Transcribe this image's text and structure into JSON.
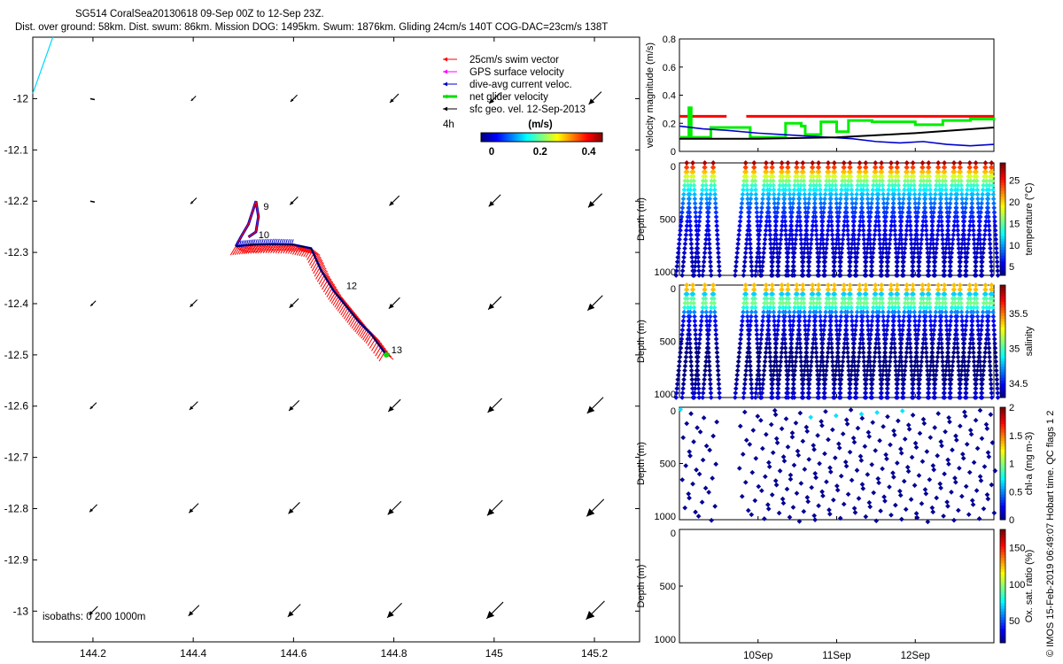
{
  "header": {
    "title": "SG514 CoralSea20130618 09-Sep 00Z to 12-Sep 23Z.",
    "subtitle": "Dist. over ground: 58km. Dist. swum: 86km. Mission DOG: 1495km. Swum: 1876km. Gliding 24cm/s 140T COG-DAC=23cm/s 138T"
  },
  "credit": "© IMOS 15-Feb-2019 06:49:07 Hobart time. QC flags 1  2",
  "colors": {
    "swim": "#ff0000",
    "gps": "#ff00ff",
    "dac": "#0000cc",
    "net": "#00dd00",
    "geo": "#000000",
    "cyan": "#00d8ff"
  },
  "chart_data": [
    {
      "type": "scatter",
      "name": "map",
      "x_ticks": [
        "144.2",
        "144.4",
        "144.6",
        "144.8",
        "145",
        "145.2"
      ],
      "y_ticks": [
        "-12",
        "-12.1",
        "-12.2",
        "-12.3",
        "-12.4",
        "-12.5",
        "-12.6",
        "-12.7",
        "-12.8",
        "-12.9",
        "-13"
      ],
      "xlim": [
        144.08,
        145.29
      ],
      "ylim": [
        -13.06,
        -11.88
      ],
      "legend": [
        {
          "label": "25cm/s swim vector",
          "color": "#ff0000"
        },
        {
          "label": "GPS surface velocity",
          "color": "#ff00ff"
        },
        {
          "label": "dive-avg current veloc.",
          "color": "#0000cc"
        },
        {
          "label": "net glider velocity",
          "color": "#00dd00"
        },
        {
          "label": "sfc geo. vel. 12-Sep-2013",
          "color": "#000000"
        }
      ],
      "legend_extra": "4h",
      "colorbar": {
        "unit": "(m/s)",
        "ticks": [
          "0",
          "0.2",
          "0.4"
        ],
        "range": [
          0,
          0.5
        ]
      },
      "isobaths_label": "isobaths: 0   200  1000m",
      "track": [
        [
          144.485,
          -12.288
        ],
        [
          144.52,
          -12.285
        ],
        [
          144.56,
          -12.284
        ],
        [
          144.6,
          -12.285
        ],
        [
          144.635,
          -12.292
        ],
        [
          144.655,
          -12.335
        ],
        [
          144.68,
          -12.375
        ],
        [
          144.705,
          -12.405
        ],
        [
          144.73,
          -12.435
        ],
        [
          144.755,
          -12.46
        ],
        [
          144.785,
          -12.5
        ]
      ],
      "loop": [
        [
          144.485,
          -12.288
        ],
        [
          144.495,
          -12.27
        ],
        [
          144.51,
          -12.245
        ],
        [
          144.52,
          -12.215
        ],
        [
          144.525,
          -12.2
        ],
        [
          144.53,
          -12.23
        ],
        [
          144.525,
          -12.26
        ],
        [
          144.51,
          -12.27
        ]
      ],
      "day_labels": [
        {
          "text": "9",
          "lon": 144.54,
          "lat": -12.21
        },
        {
          "text": "10",
          "lon": 144.53,
          "lat": -12.265
        },
        {
          "text": "12",
          "lon": 144.705,
          "lat": -12.365
        },
        {
          "text": "13",
          "lon": 144.795,
          "lat": -12.49
        }
      ],
      "geo_lons": [
        144.2,
        144.4,
        144.6,
        144.8,
        145.0,
        145.2
      ],
      "geo_lats": [
        -12.0,
        -12.2,
        -12.4,
        -12.6,
        -12.8,
        -13.0
      ]
    },
    {
      "type": "line",
      "name": "velocity",
      "ylabel": "velocity magnitude (m/s)",
      "y_ticks": [
        "0",
        "0.2",
        "0.4",
        "0.6",
        "0.8"
      ],
      "ylim": [
        0,
        0.8
      ],
      "xlim": [
        9.0,
        13.0
      ],
      "series": [
        {
          "color": "#ff0000",
          "segments": [
            [
              [
                9.0,
                0.25
              ],
              [
                9.6,
                0.25
              ]
            ],
            [
              [
                9.85,
                0.25
              ],
              [
                13.0,
                0.25
              ]
            ]
          ]
        },
        {
          "color": "#00ee00",
          "steps": [
            [
              9.0,
              0.1
            ],
            [
              9.12,
              0.31
            ],
            [
              9.15,
              0.1
            ],
            [
              9.4,
              0.1
            ],
            [
              9.4,
              0.17
            ],
            [
              9.8,
              0.17
            ],
            [
              9.9,
              0.1
            ],
            [
              10.1,
              0.1
            ],
            [
              10.35,
              0.2
            ],
            [
              10.55,
              0.18
            ],
            [
              10.6,
              0.12
            ],
            [
              10.8,
              0.21
            ],
            [
              11.0,
              0.14
            ],
            [
              11.15,
              0.22
            ],
            [
              11.45,
              0.21
            ],
            [
              11.8,
              0.21
            ],
            [
              12.0,
              0.19
            ],
            [
              12.35,
              0.22
            ],
            [
              12.7,
              0.23
            ],
            [
              13.0,
              0.22
            ]
          ]
        },
        {
          "color": "#0000cc",
          "points": [
            [
              9.0,
              0.18
            ],
            [
              9.3,
              0.16
            ],
            [
              9.6,
              0.15
            ],
            [
              10.0,
              0.13
            ],
            [
              10.3,
              0.12
            ],
            [
              10.6,
              0.11
            ],
            [
              10.9,
              0.1
            ],
            [
              11.2,
              0.09
            ],
            [
              11.5,
              0.07
            ],
            [
              11.8,
              0.06
            ],
            [
              12.1,
              0.07
            ],
            [
              12.4,
              0.05
            ],
            [
              12.7,
              0.04
            ],
            [
              13.0,
              0.05
            ]
          ]
        },
        {
          "color": "#000000",
          "points": [
            [
              9.0,
              0.09
            ],
            [
              10.0,
              0.09
            ],
            [
              11.0,
              0.1
            ],
            [
              12.0,
              0.13
            ],
            [
              13.0,
              0.17
            ]
          ]
        }
      ]
    },
    {
      "type": "scatter",
      "name": "temperature",
      "ylabel": "Depth (m)",
      "y_ticks": [
        "0",
        "500",
        "1000"
      ],
      "ylim": [
        1000,
        0
      ],
      "cb_label": "temperature (°C)",
      "cb_ticks": [
        "5",
        "10",
        "15",
        "20",
        "25"
      ],
      "cb_range": [
        3,
        29
      ]
    },
    {
      "type": "scatter",
      "name": "salinity",
      "ylabel": "Depth (m)",
      "y_ticks": [
        "0",
        "500",
        "1000"
      ],
      "ylim": [
        1000,
        0
      ],
      "cb_label": "salinity",
      "cb_ticks": [
        "34.5",
        "35",
        "35.5"
      ],
      "cb_range": [
        34.3,
        35.9
      ]
    },
    {
      "type": "scatter",
      "name": "chl",
      "ylabel": "Depth (m)",
      "y_ticks": [
        "0",
        "500",
        "1000"
      ],
      "ylim": [
        1000,
        0
      ],
      "cb_label": "chl-a (mg m-3)",
      "cb_ticks": [
        "0",
        "0.5",
        "1",
        "1.5",
        "2"
      ],
      "cb_range": [
        0,
        2
      ]
    },
    {
      "type": "scatter",
      "name": "oxygen",
      "ylabel": "Depth (m)",
      "y_ticks": [
        "0",
        "500",
        "1000"
      ],
      "ylim": [
        1000,
        0
      ],
      "cb_label": "Ox. sat. ratio (%)",
      "cb_ticks": [
        "50",
        "100",
        "150"
      ],
      "cb_range": [
        20,
        175
      ]
    }
  ],
  "time_axis": {
    "ticks": [
      "10Sep",
      "11Sep",
      "12Sep"
    ]
  },
  "dive_days": [
    9.07,
    9.17,
    9.3,
    9.43,
    9.82,
    9.95,
    10.08,
    10.18,
    10.28,
    10.38,
    10.47,
    10.57,
    10.67,
    10.77,
    10.87,
    10.97,
    11.07,
    11.17,
    11.27,
    11.37,
    11.47,
    11.57,
    11.67,
    11.77,
    11.87,
    11.97,
    12.07,
    12.17,
    12.27,
    12.37,
    12.47,
    12.57,
    12.67,
    12.77,
    12.87,
    12.97
  ]
}
